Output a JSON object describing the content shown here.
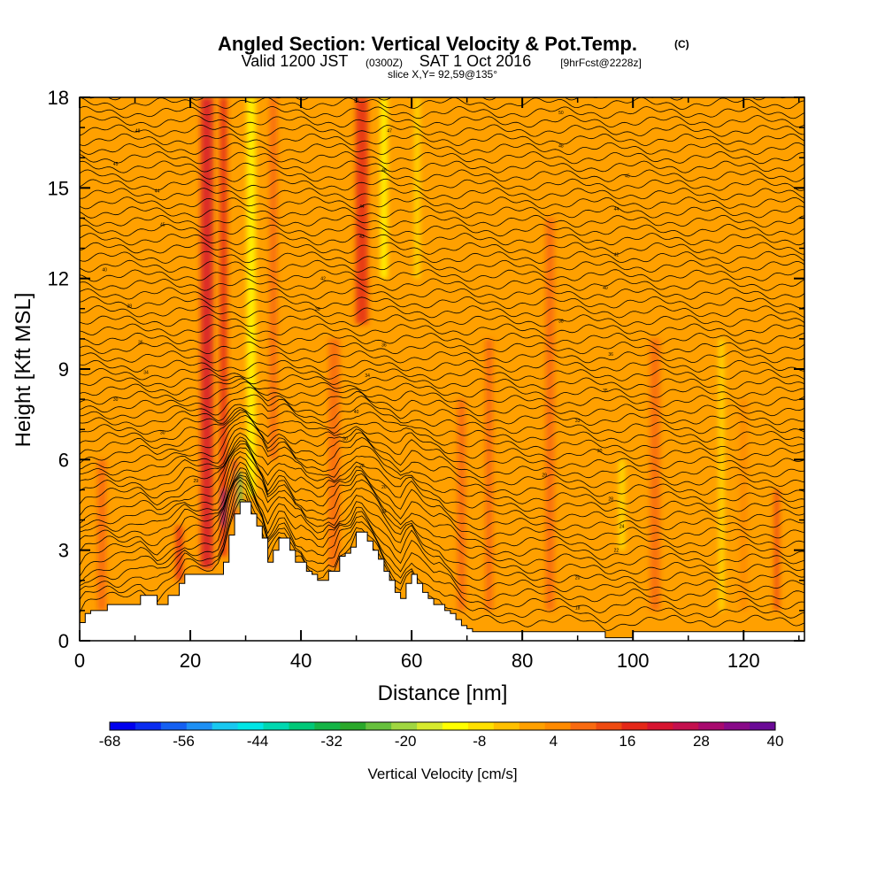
{
  "title": {
    "main": "Angled Section: Vertical Velocity & Pot.Temp.",
    "main_unit": "(C)",
    "valid_a": "Valid 1200 JST",
    "valid_b": "(0300Z)",
    "valid_c": "SAT 1 Oct 2016",
    "valid_d": "[9hrFcst@2228z]",
    "slice": "slice X,Y= 92,59@135°"
  },
  "chart_data": {
    "type": "heatmap",
    "xlabel": "Distance [nm]",
    "ylabel": "Height [Kft MSL]",
    "xlim": [
      0,
      131
    ],
    "ylim": [
      0,
      18
    ],
    "x_ticks": [
      "0",
      "20",
      "40",
      "60",
      "80",
      "100",
      "120"
    ],
    "y_ticks": [
      "0",
      "3",
      "6",
      "9",
      "12",
      "15",
      "18"
    ],
    "terrain": {
      "x": [
        0,
        1,
        2,
        5,
        7,
        11,
        14,
        16,
        18,
        19,
        22,
        25,
        26,
        27,
        28,
        29,
        30,
        31,
        32,
        33,
        34,
        35,
        36,
        37,
        38,
        39,
        40,
        41,
        42,
        43,
        44,
        45,
        46,
        47,
        48,
        49,
        50,
        51,
        52,
        53,
        54,
        55,
        56,
        57,
        58,
        59,
        60,
        61,
        62,
        63,
        64,
        65,
        66,
        67,
        68,
        69,
        70,
        71,
        72,
        90,
        95,
        100,
        105,
        110,
        131
      ],
      "h": [
        0.6,
        0.9,
        1.0,
        1.2,
        1.2,
        1.5,
        1.2,
        1.5,
        1.9,
        2.2,
        2.2,
        2.2,
        2.6,
        3.5,
        4.2,
        4.6,
        4.6,
        4.2,
        3.8,
        3.4,
        2.6,
        3.0,
        3.4,
        3.4,
        3.0,
        2.6,
        2.6,
        2.3,
        2.2,
        2.0,
        2.0,
        2.3,
        2.3,
        2.8,
        2.9,
        3.1,
        3.6,
        3.6,
        3.3,
        3.0,
        2.7,
        2.3,
        2.0,
        1.6,
        1.4,
        1.9,
        2.2,
        1.9,
        1.6,
        1.4,
        1.2,
        1.2,
        1.0,
        0.9,
        0.7,
        0.5,
        0.4,
        0.3,
        0.3,
        0.3,
        0.1,
        0.3,
        0.3,
        0.3,
        0.3
      ]
    },
    "theta_contours": {
      "interval_c": 1,
      "labels": [
        {
          "x": 10.5,
          "y": 16.9,
          "v": "48"
        },
        {
          "x": 6.5,
          "y": 15.8,
          "v": "45"
        },
        {
          "x": 14,
          "y": 14.9,
          "v": "44"
        },
        {
          "x": 15,
          "y": 13.8,
          "v": "45"
        },
        {
          "x": 4.5,
          "y": 12.3,
          "v": "40"
        },
        {
          "x": 9,
          "y": 11.1,
          "v": "38"
        },
        {
          "x": 11,
          "y": 9.9,
          "v": "36"
        },
        {
          "x": 12,
          "y": 8.9,
          "v": "34"
        },
        {
          "x": 6.5,
          "y": 8.0,
          "v": "30"
        },
        {
          "x": 15,
          "y": 6.9,
          "v": "30"
        },
        {
          "x": 21,
          "y": 5.3,
          "v": "29"
        },
        {
          "x": 50,
          "y": 17.9,
          "v": "50"
        },
        {
          "x": 56,
          "y": 16.9,
          "v": "47"
        },
        {
          "x": 55,
          "y": 15.6,
          "v": "46"
        },
        {
          "x": 51,
          "y": 14.4,
          "v": "44"
        },
        {
          "x": 51,
          "y": 13.4,
          "v": "43"
        },
        {
          "x": 44,
          "y": 12.0,
          "v": "42"
        },
        {
          "x": 43,
          "y": 11.0,
          "v": "38"
        },
        {
          "x": 55,
          "y": 9.8,
          "v": "36"
        },
        {
          "x": 52,
          "y": 8.8,
          "v": "34"
        },
        {
          "x": 50,
          "y": 7.6,
          "v": "40"
        },
        {
          "x": 48,
          "y": 6.7,
          "v": "30"
        },
        {
          "x": 51,
          "y": 5.8,
          "v": "28"
        },
        {
          "x": 55,
          "y": 5.1,
          "v": "26"
        },
        {
          "x": 55,
          "y": 4.3,
          "v": "24"
        },
        {
          "x": 87,
          "y": 17.5,
          "v": "50"
        },
        {
          "x": 87,
          "y": 16.4,
          "v": "48"
        },
        {
          "x": 99,
          "y": 15.4,
          "v": "45"
        },
        {
          "x": 97,
          "y": 14.3,
          "v": "44"
        },
        {
          "x": 97,
          "y": 12.8,
          "v": "42"
        },
        {
          "x": 95,
          "y": 11.7,
          "v": "40"
        },
        {
          "x": 87,
          "y": 10.6,
          "v": "38"
        },
        {
          "x": 96,
          "y": 9.5,
          "v": "36"
        },
        {
          "x": 95,
          "y": 8.3,
          "v": "35"
        },
        {
          "x": 90,
          "y": 7.3,
          "v": "33"
        },
        {
          "x": 94,
          "y": 6.3,
          "v": "30"
        },
        {
          "x": 84,
          "y": 5.5,
          "v": "29"
        },
        {
          "x": 96,
          "y": 4.7,
          "v": "28"
        },
        {
          "x": 98,
          "y": 3.8,
          "v": "24"
        },
        {
          "x": 97,
          "y": 3.0,
          "v": "22"
        },
        {
          "x": 90,
          "y": 2.1,
          "v": "20"
        },
        {
          "x": 90,
          "y": 1.1,
          "v": "18"
        }
      ]
    },
    "vertical_velocity_features": [
      {
        "x": 23,
        "h0": 2.4,
        "h1": 18,
        "w": 2.2,
        "v": 20
      },
      {
        "x": 26,
        "h0": 2.8,
        "h1": 18,
        "w": 1.3,
        "v": 18
      },
      {
        "x": 26,
        "h0": 3.8,
        "h1": 5.0,
        "w": 0.6,
        "v": 36
      },
      {
        "x": 28,
        "h0": 4.0,
        "h1": 6.0,
        "w": 0.5,
        "v": 24
      },
      {
        "x": 29,
        "h0": 4.4,
        "h1": 5.6,
        "w": 0.6,
        "v": -36
      },
      {
        "x": 31,
        "h0": 4.8,
        "h1": 18,
        "w": 1.6,
        "v": -12
      },
      {
        "x": 18,
        "h0": 2.0,
        "h1": 3.8,
        "w": 1.2,
        "v": 16
      },
      {
        "x": 35,
        "h0": 6.0,
        "h1": 18,
        "w": 1.4,
        "v": 8
      },
      {
        "x": 51,
        "h0": 10.5,
        "h1": 18,
        "w": 2.2,
        "v": 16
      },
      {
        "x": 55,
        "h0": 12.0,
        "h1": 18,
        "w": 1.3,
        "v": -12
      },
      {
        "x": 61,
        "h0": 12.0,
        "h1": 18,
        "w": 1.0,
        "v": -8
      },
      {
        "x": 46,
        "h0": 2.4,
        "h1": 10.0,
        "w": 2.0,
        "v": 8
      },
      {
        "x": 69,
        "h0": 1.0,
        "h1": 8.0,
        "w": 1.5,
        "v": 8
      },
      {
        "x": 74,
        "h0": 1.0,
        "h1": 10.0,
        "w": 1.4,
        "v": 8
      },
      {
        "x": 85,
        "h0": 1.0,
        "h1": 14.0,
        "w": 1.6,
        "v": 8
      },
      {
        "x": 98,
        "h0": 3.0,
        "h1": 6.0,
        "w": 1.2,
        "v": -8
      },
      {
        "x": 104,
        "h0": 1.0,
        "h1": 10.0,
        "w": 1.8,
        "v": 10
      },
      {
        "x": 116,
        "h0": 1.0,
        "h1": 10.0,
        "w": 1.0,
        "v": -8
      },
      {
        "x": 120,
        "h0": 1.0,
        "h1": 8.0,
        "w": 1.4,
        "v": 6
      },
      {
        "x": 126,
        "h0": 1.0,
        "h1": 5.0,
        "w": 1.0,
        "v": 14
      },
      {
        "x": 4,
        "h0": 1.0,
        "h1": 6.0,
        "w": 1.6,
        "v": 10
      }
    ],
    "background_value": 2
  },
  "colorbar": {
    "label": "Vertical Velocity [cm/s]",
    "ticks": [
      "-68",
      "-56",
      "-44",
      "-32",
      "-20",
      "-8",
      "4",
      "16",
      "28",
      "40"
    ],
    "min": -68,
    "max": 40,
    "colors": [
      "#0000ee",
      "#0a2cf0",
      "#1460f2",
      "#1e90f4",
      "#18c8f0",
      "#00e6e6",
      "#00d8b0",
      "#00c878",
      "#14b446",
      "#2aa82a",
      "#66c03c",
      "#a0d640",
      "#d6ea2e",
      "#ffff00",
      "#ffe000",
      "#ffc000",
      "#ffa000",
      "#ff8a00",
      "#f86a10",
      "#ee4a10",
      "#e42818",
      "#d61430",
      "#c4104e",
      "#a80a6e",
      "#880a88",
      "#6a0a96"
    ]
  }
}
